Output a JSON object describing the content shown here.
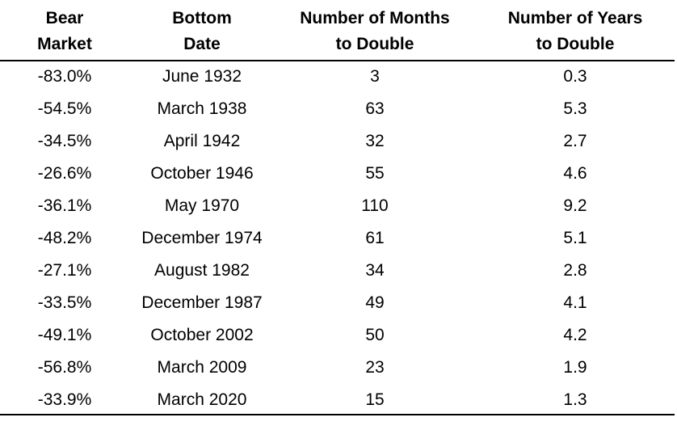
{
  "table": {
    "header": [
      [
        "Bear",
        "Market"
      ],
      [
        "Bottom",
        "Date"
      ],
      [
        "Number of Months",
        "to Double"
      ],
      [
        "Number of Years",
        "to Double"
      ]
    ],
    "rows": [
      [
        "-83.0%",
        "June 1932",
        "3",
        "0.3"
      ],
      [
        "-54.5%",
        "March 1938",
        "63",
        "5.3"
      ],
      [
        "-34.5%",
        "April 1942",
        "32",
        "2.7"
      ],
      [
        "-26.6%",
        "October 1946",
        "55",
        "4.6"
      ],
      [
        "-36.1%",
        "May 1970",
        "110",
        "9.2"
      ],
      [
        "-48.2%",
        "December 1974",
        "61",
        "5.1"
      ],
      [
        "-27.1%",
        "August 1982",
        "34",
        "2.8"
      ],
      [
        "-33.5%",
        "December 1987",
        "49",
        "4.1"
      ],
      [
        "-49.1%",
        "October 2002",
        "50",
        "4.2"
      ],
      [
        "-56.8%",
        "March 2009",
        "23",
        "1.9"
      ],
      [
        "-33.9%",
        "March 2020",
        "15",
        "1.3"
      ]
    ]
  }
}
